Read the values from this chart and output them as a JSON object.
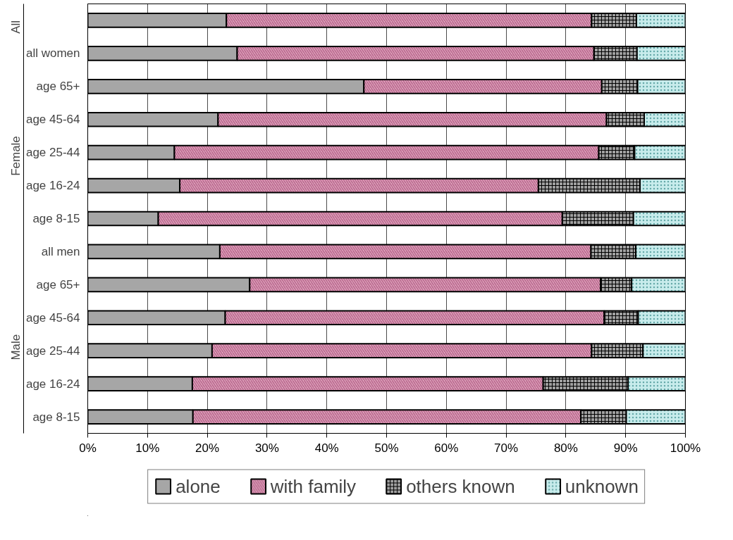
{
  "chart_data": {
    "type": "bar",
    "orientation": "horizontal",
    "stacked": true,
    "categories": [
      null,
      "all women",
      "age 65+",
      "age 45-64",
      "age 25-44",
      "age 16-24",
      "age 8-15",
      "all men",
      "age 65+",
      "age 45-64",
      "age 25-44",
      "age 16-24",
      "age 8-15"
    ],
    "series": [
      {
        "name": "alone",
        "color": "#a6a6a6",
        "values": [
          23.2,
          25.0,
          46.2,
          21.8,
          14.5,
          15.4,
          11.8,
          22.1,
          27.1,
          23.0,
          20.8,
          17.5,
          17.6
        ]
      },
      {
        "name": "with family",
        "color": "#e8b4c8",
        "values": [
          61.1,
          59.7,
          39.8,
          65.0,
          71.0,
          60.0,
          67.6,
          62.1,
          58.7,
          63.4,
          63.5,
          58.7,
          64.9
        ]
      },
      {
        "name": "others known",
        "color": "#a0a0a0",
        "values": [
          7.5,
          7.2,
          6.0,
          6.3,
          6.0,
          17.0,
          11.9,
          7.5,
          5.2,
          5.7,
          8.6,
          14.2,
          7.6
        ]
      },
      {
        "name": "unknown",
        "color": "#c8ecec",
        "values": [
          8.2,
          8.1,
          8.0,
          6.9,
          8.5,
          7.6,
          8.7,
          8.3,
          9.0,
          7.9,
          7.1,
          9.6,
          9.9
        ]
      }
    ],
    "annotations": [
      "All",
      "Female",
      "Male"
    ],
    "xlim": [
      0,
      100
    ],
    "xticks": [
      {
        "value": 0,
        "label": "0%"
      },
      {
        "value": 10,
        "label": "10%"
      },
      {
        "value": 20,
        "label": "20%"
      },
      {
        "value": 30,
        "label": "30%"
      },
      {
        "value": 40,
        "label": "40%"
      },
      {
        "value": 50,
        "label": "50%"
      },
      {
        "value": 60,
        "label": "60%"
      },
      {
        "value": 70,
        "label": "70%"
      },
      {
        "value": 80,
        "label": "80%"
      },
      {
        "value": 90,
        "label": "90%"
      },
      {
        "value": 100,
        "label": "100%"
      }
    ],
    "grid": "x",
    "legend": "bottom"
  }
}
